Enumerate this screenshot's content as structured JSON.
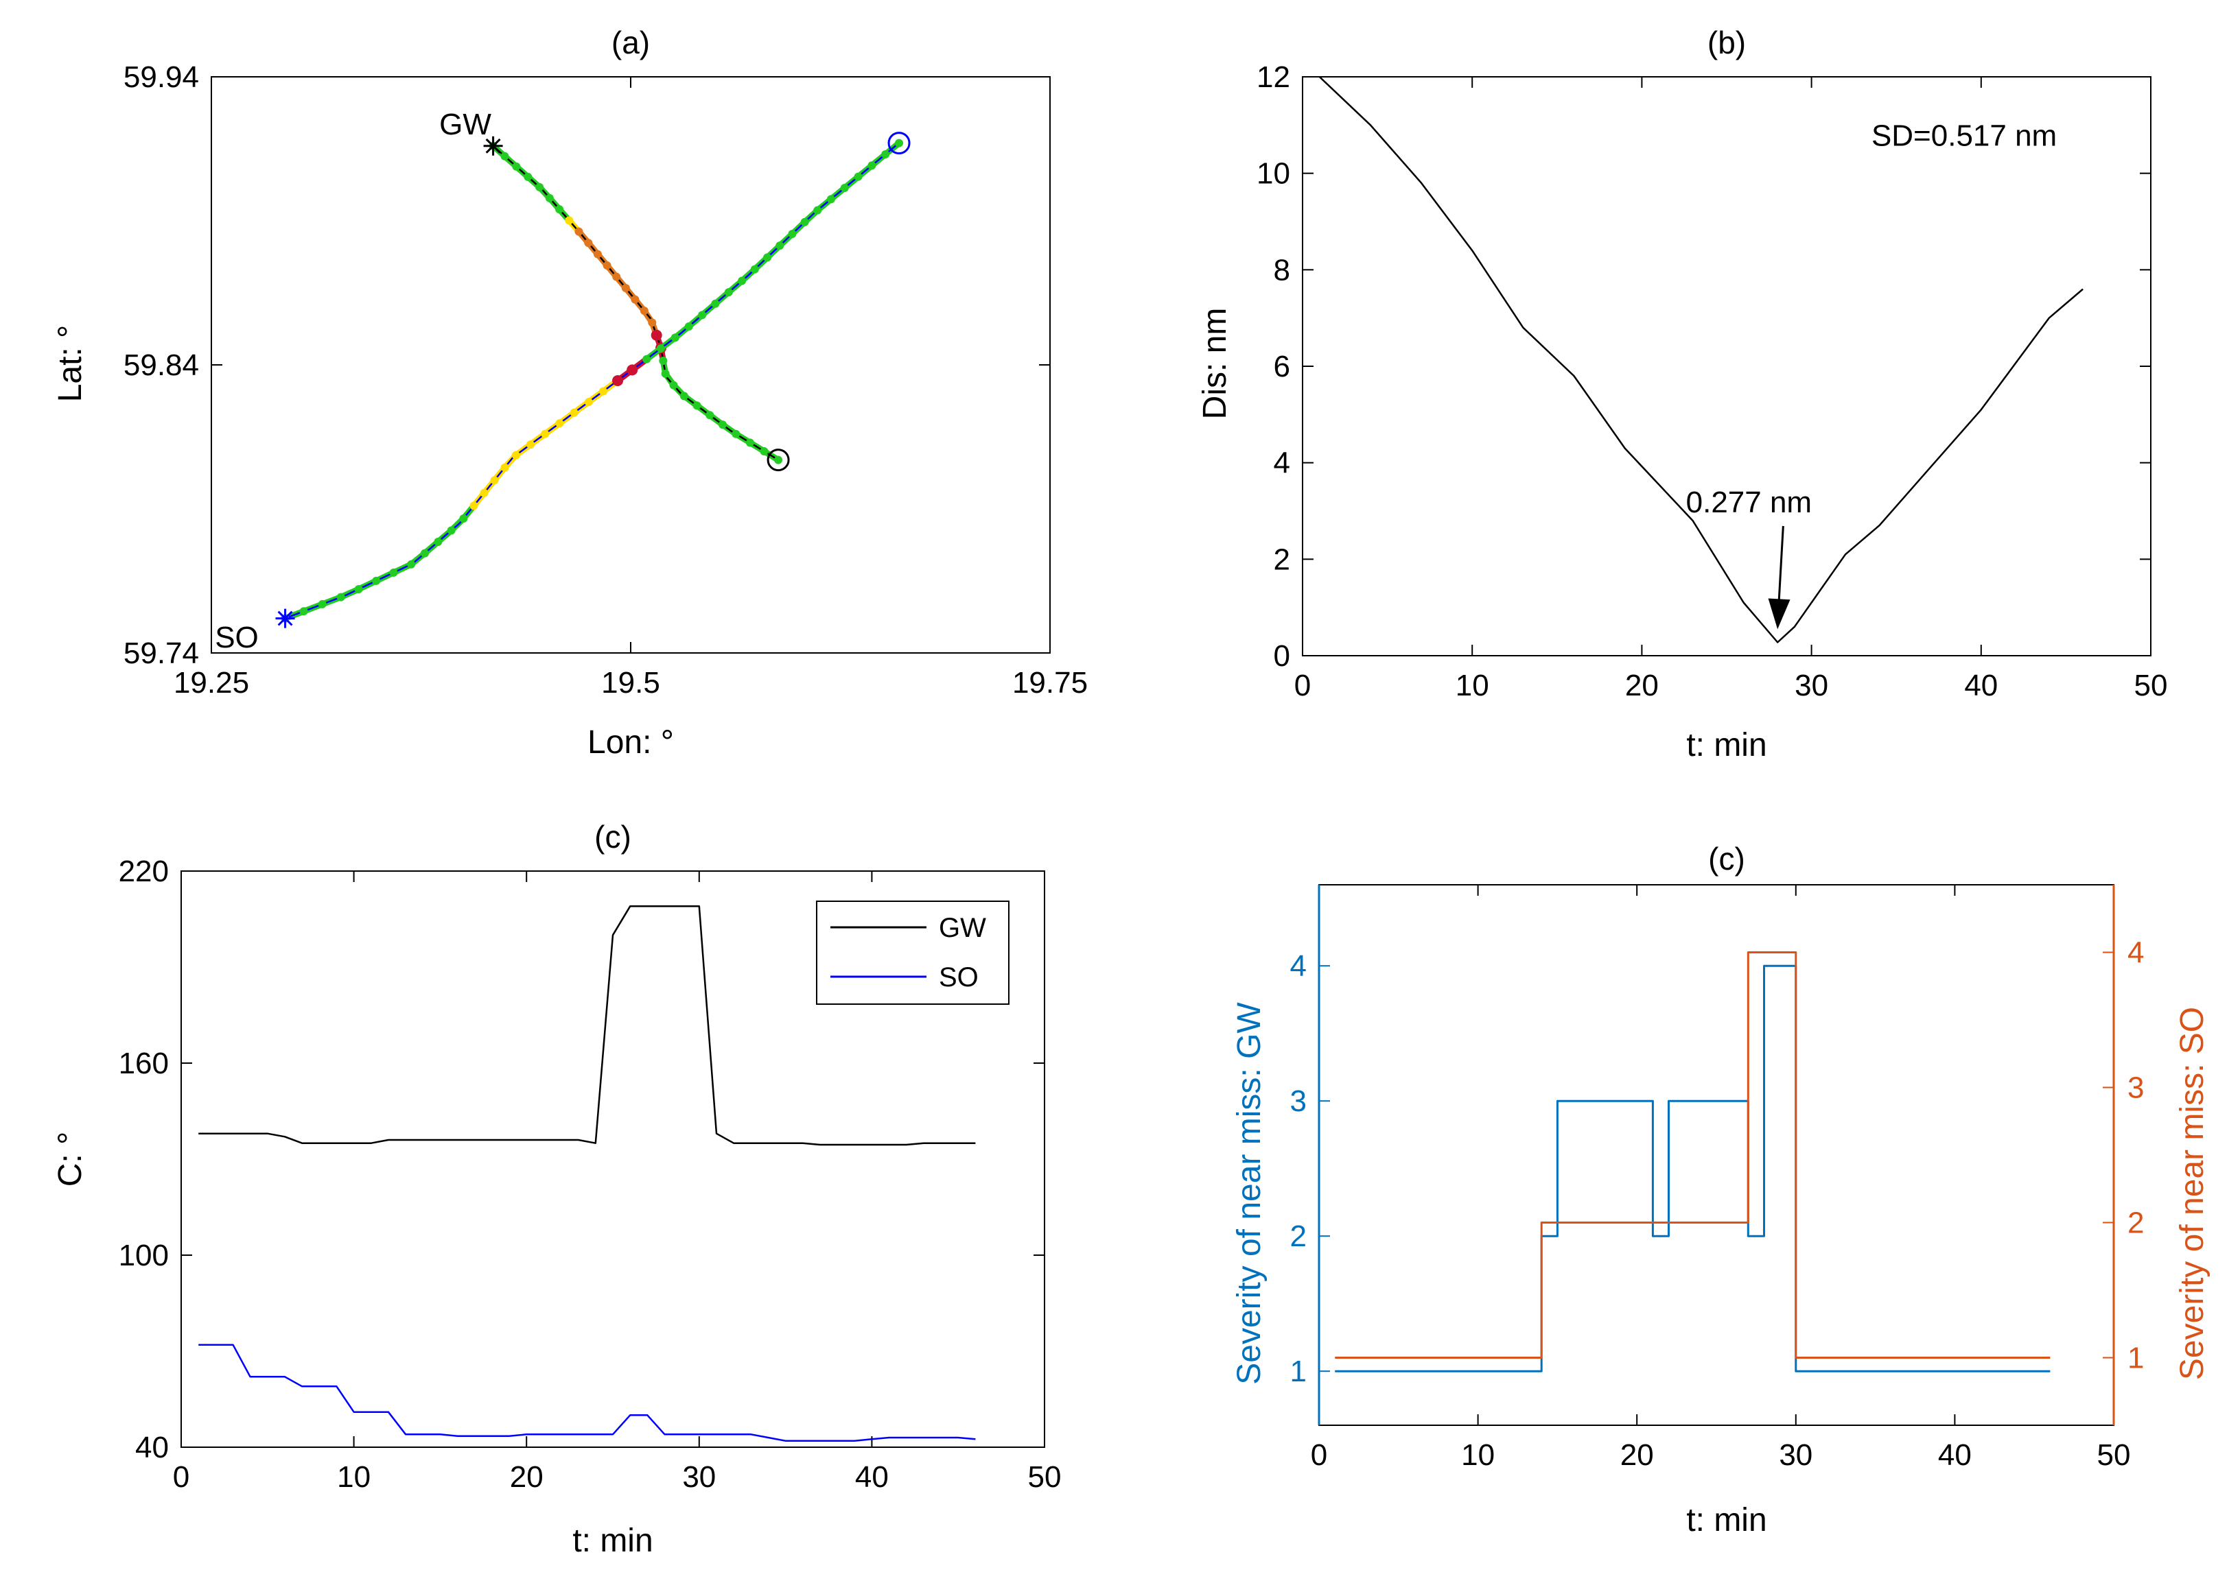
{
  "colors": {
    "black": "#000000",
    "blue": "#0000ff",
    "matlab_blue": "#0072bd",
    "matlab_orange": "#d95319",
    "green": "#22cc22",
    "yellow": "#ffdd00",
    "orange": "#e0761e",
    "red": "#cc1133"
  },
  "chart_data": [
    {
      "id": "a",
      "type": "line",
      "title": "(a)",
      "xlabel": "Lon: °",
      "ylabel": "Lat: °",
      "xlim": [
        19.25,
        19.75
      ],
      "ylim": [
        59.74,
        59.94
      ],
      "xticks": [
        "19.25",
        "19.5",
        "19.75"
      ],
      "yticks": [
        "59.74",
        "59.84",
        "59.94"
      ],
      "xtick_values": [
        19.25,
        19.5,
        19.75
      ],
      "ytick_values": [
        59.74,
        59.84,
        59.94
      ],
      "series": [
        {
          "name": "GW",
          "start_label": "GW",
          "start_marker": "asterisk",
          "end_marker": "circle",
          "color": "#000000",
          "x": [
            19.418,
            19.447,
            19.471,
            19.498,
            19.512,
            19.518,
            19.521,
            19.53,
            19.56,
            19.588
          ],
          "y": [
            59.916,
            59.901,
            59.885,
            59.866,
            59.856,
            59.846,
            59.836,
            59.83,
            59.817,
            59.807
          ],
          "point_states": [
            "green",
            "green",
            "green",
            "green",
            "green",
            "green",
            "green",
            "yellow",
            "orange",
            "orange",
            "orange",
            "orange",
            "orange",
            "orange",
            "orange",
            "orange",
            "orange",
            "red",
            "red",
            "green",
            "green",
            "green",
            "green",
            "green",
            "green",
            "green",
            "green",
            "green",
            "green",
            "green"
          ]
        },
        {
          "name": "SO",
          "start_label": "SO",
          "start_marker": "asterisk",
          "end_marker": "circle",
          "color": "#0000ff",
          "x": [
            19.294,
            19.33,
            19.37,
            19.398,
            19.43,
            19.47,
            19.505,
            19.53,
            19.57,
            19.61,
            19.66
          ],
          "y": [
            59.752,
            59.76,
            59.771,
            59.785,
            59.808,
            59.825,
            59.84,
            59.851,
            59.871,
            59.893,
            59.917
          ],
          "point_states": [
            "green",
            "green",
            "green",
            "green",
            "green",
            "green",
            "green",
            "green",
            "green",
            "green",
            "green",
            "green",
            "yellow",
            "yellow",
            "yellow",
            "yellow",
            "yellow",
            "yellow",
            "yellow",
            "yellow",
            "yellow",
            "yellow",
            "yellow",
            "red",
            "red",
            "green",
            "green",
            "green",
            "green",
            "green",
            "green",
            "green",
            "green",
            "green",
            "green",
            "green",
            "green",
            "green",
            "green",
            "green",
            "green",
            "green",
            "green",
            "green",
            "green"
          ]
        }
      ]
    },
    {
      "id": "b",
      "type": "line",
      "title": "(b)",
      "xlabel": "t: min",
      "ylabel": "Dis: nm",
      "xlim": [
        0,
        50
      ],
      "ylim": [
        0,
        12
      ],
      "xticks": [
        "0",
        "10",
        "20",
        "30",
        "40",
        "50"
      ],
      "yticks": [
        "0",
        "2",
        "4",
        "6",
        "8",
        "10",
        "12"
      ],
      "xtick_values": [
        0,
        10,
        20,
        30,
        40,
        50
      ],
      "ytick_values": [
        0,
        2,
        4,
        6,
        8,
        10,
        12
      ],
      "series": [
        {
          "name": "Distance",
          "color": "#000000",
          "x": [
            1,
            4,
            7,
            10,
            13,
            16,
            19,
            23,
            26,
            28,
            29,
            32,
            34,
            37,
            40,
            44,
            46
          ],
          "y": [
            12,
            11,
            9.8,
            8.4,
            6.8,
            5.8,
            4.3,
            2.8,
            1.1,
            0.277,
            0.6,
            2.1,
            2.7,
            3.9,
            5.1,
            7.0,
            7.6
          ]
        }
      ],
      "annotations": [
        {
          "text": "SD=0.517 nm",
          "x": 39,
          "y": 10.8
        },
        {
          "text": "0.277 nm",
          "x": 25.5,
          "y": 3.2,
          "arrow_to": [
            28,
            0.55
          ]
        }
      ]
    },
    {
      "id": "c1",
      "type": "line",
      "title": "(c)",
      "xlabel": "t: min",
      "ylabel": "C: °",
      "xlim": [
        0,
        50
      ],
      "ylim": [
        40,
        220
      ],
      "xticks": [
        "0",
        "10",
        "20",
        "30",
        "40",
        "50"
      ],
      "yticks": [
        "40",
        "100",
        "160",
        "220"
      ],
      "xtick_values": [
        0,
        10,
        20,
        30,
        40,
        50
      ],
      "ytick_values": [
        40,
        100,
        160,
        220
      ],
      "legend": {
        "position": "top-right",
        "entries": [
          "GW",
          "SO"
        ]
      },
      "series": [
        {
          "name": "GW",
          "color": "#000000",
          "x": [
            1,
            2,
            3,
            4,
            5,
            6,
            7,
            8,
            9,
            10,
            11,
            12,
            13,
            14,
            15,
            16,
            17,
            18,
            19,
            20,
            21,
            22,
            23,
            24,
            25,
            26,
            27,
            28,
            29,
            30,
            31,
            32,
            33,
            34,
            35,
            36,
            37,
            38,
            39,
            40,
            41,
            42,
            43,
            44,
            45,
            46
          ],
          "y": [
            138,
            138,
            138,
            138,
            138,
            137,
            135,
            135,
            135,
            135,
            135,
            136,
            136,
            136,
            136,
            136,
            136,
            136,
            136,
            136,
            136,
            136,
            136,
            135,
            200,
            209,
            209,
            209,
            209,
            209,
            138,
            135,
            135,
            135,
            135,
            135,
            134.5,
            134.5,
            134.5,
            134.5,
            134.5,
            134.5,
            135,
            135,
            135,
            135
          ]
        },
        {
          "name": "SO",
          "color": "#0000ff",
          "x": [
            1,
            2,
            3,
            4,
            5,
            6,
            7,
            8,
            9,
            10,
            11,
            12,
            13,
            14,
            15,
            16,
            17,
            18,
            19,
            20,
            21,
            22,
            23,
            24,
            25,
            26,
            27,
            28,
            29,
            30,
            31,
            32,
            33,
            34,
            35,
            36,
            37,
            38,
            39,
            40,
            41,
            42,
            43,
            44,
            45,
            46
          ],
          "y": [
            72,
            72,
            72,
            62,
            62,
            62,
            59,
            59,
            59,
            51,
            51,
            51,
            44,
            44,
            44,
            43.5,
            43.5,
            43.5,
            43.5,
            44,
            44,
            44,
            44,
            44,
            44,
            50,
            50,
            44,
            44,
            44,
            44,
            44,
            44,
            43,
            42,
            42,
            42,
            42,
            42,
            42.5,
            43,
            43,
            43,
            43,
            43,
            42.5
          ]
        }
      ]
    },
    {
      "id": "c2",
      "type": "line",
      "title": "(c)",
      "xlabel": "t: min",
      "ylabel": "Severity of near miss: GW",
      "ylabel_right": "Severity of near miss: SO",
      "xlim": [
        0,
        50
      ],
      "ylim": [
        0.6,
        4.6
      ],
      "ylim_right": [
        0.5,
        4.5
      ],
      "xticks": [
        "0",
        "10",
        "20",
        "30",
        "40",
        "50"
      ],
      "yticks": [
        "1",
        "2",
        "3",
        "4"
      ],
      "yticks_right": [
        "1",
        "2",
        "3",
        "4"
      ],
      "xtick_values": [
        0,
        10,
        20,
        30,
        40,
        50
      ],
      "ytick_values": [
        1,
        2,
        3,
        4
      ],
      "series": [
        {
          "name": "GW",
          "axis": "left",
          "color": "#0072bd",
          "step": true,
          "x": [
            1,
            14,
            14,
            15,
            15,
            21,
            21,
            22,
            22,
            27,
            27,
            28,
            28,
            30,
            30,
            46
          ],
          "y": [
            1,
            1,
            2,
            2,
            3,
            3,
            2,
            2,
            3,
            3,
            2,
            2,
            4,
            4,
            1,
            1
          ]
        },
        {
          "name": "SO",
          "axis": "right",
          "color": "#d95319",
          "step": true,
          "x": [
            1,
            14,
            14,
            27,
            27,
            30,
            30,
            46
          ],
          "y": [
            1,
            1,
            2,
            2,
            4,
            4,
            1,
            1
          ]
        }
      ]
    }
  ]
}
